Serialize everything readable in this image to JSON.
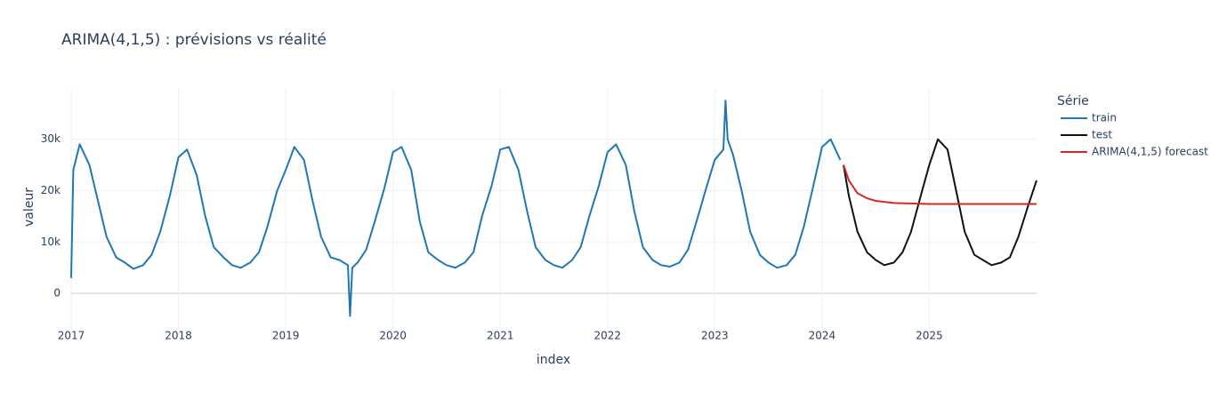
{
  "chart_data": {
    "type": "line",
    "title": "ARIMA(4,1,5) : prévisions vs réalité",
    "x_label": "index",
    "y_label": "valeur",
    "legend_title": "Série",
    "legend_position": "right",
    "grid": true,
    "xlim": [
      2017,
      2026
    ],
    "ylim": [
      -6900,
      39800
    ],
    "xticks": [
      2017,
      2018,
      2019,
      2020,
      2021,
      2022,
      2023,
      2024,
      2025
    ],
    "yticks": [
      0,
      {
        "value": 10000,
        "label": "10k"
      },
      {
        "value": 20000,
        "label": "20k"
      },
      {
        "value": 30000,
        "label": "30k"
      }
    ],
    "series": [
      {
        "name": "train",
        "color": "#1f77b4",
        "x": [
          2017,
          2017.02,
          2017.08,
          2017.17,
          2017.25,
          2017.33,
          2017.42,
          2017.5,
          2017.58,
          2017.67,
          2017.75,
          2017.83,
          2017.92,
          2018,
          2018.08,
          2018.17,
          2018.25,
          2018.33,
          2018.42,
          2018.5,
          2018.58,
          2018.67,
          2018.75,
          2018.83,
          2018.92,
          2019,
          2019.08,
          2019.17,
          2019.25,
          2019.33,
          2019.42,
          2019.5,
          2019.58,
          2019.6,
          2019.62,
          2019.67,
          2019.75,
          2019.83,
          2019.92,
          2020,
          2020.08,
          2020.17,
          2020.25,
          2020.33,
          2020.42,
          2020.5,
          2020.58,
          2020.67,
          2020.75,
          2020.83,
          2020.92,
          2021,
          2021.08,
          2021.17,
          2021.25,
          2021.33,
          2021.42,
          2021.5,
          2021.58,
          2021.67,
          2021.75,
          2021.83,
          2021.92,
          2022,
          2022.08,
          2022.17,
          2022.25,
          2022.33,
          2022.42,
          2022.5,
          2022.58,
          2022.67,
          2022.75,
          2022.83,
          2022.92,
          2023,
          2023.08,
          2023.1,
          2023.12,
          2023.17,
          2023.25,
          2023.33,
          2023.42,
          2023.5,
          2023.58,
          2023.67,
          2023.75,
          2023.83,
          2023.92,
          2024,
          2024.08,
          2024.17
        ],
        "values": [
          3000,
          24000,
          29000,
          25000,
          18000,
          11000,
          7000,
          6000,
          4800,
          5500,
          7500,
          12000,
          19000,
          26500,
          28000,
          23000,
          15000,
          9000,
          7000,
          5500,
          5000,
          6000,
          8000,
          13000,
          20000,
          24000,
          28500,
          26000,
          18000,
          11000,
          7000,
          6500,
          5500,
          -4400,
          5000,
          6000,
          8500,
          14000,
          20500,
          27500,
          28500,
          24000,
          14000,
          8000,
          6500,
          5500,
          5000,
          6000,
          8000,
          15000,
          21000,
          28000,
          28500,
          24000,
          16000,
          9000,
          6500,
          5500,
          5000,
          6500,
          9000,
          15000,
          21000,
          27500,
          29000,
          25000,
          16000,
          9000,
          6500,
          5500,
          5200,
          6000,
          8500,
          14000,
          20500,
          26000,
          28000,
          37500,
          30000,
          27000,
          20000,
          12000,
          7500,
          6000,
          5000,
          5500,
          7500,
          13000,
          21000,
          28500,
          30000,
          26000
        ]
      },
      {
        "name": "test",
        "color": "#111111",
        "x": [
          2024.2,
          2024.25,
          2024.33,
          2024.42,
          2024.5,
          2024.58,
          2024.67,
          2024.75,
          2024.83,
          2024.92,
          2025,
          2025.08,
          2025.17,
          2025.25,
          2025.33,
          2025.42,
          2025.5,
          2025.58,
          2025.67,
          2025.75,
          2025.83,
          2025.92,
          2026
        ],
        "values": [
          25000,
          19000,
          12000,
          8000,
          6500,
          5500,
          6000,
          8000,
          12000,
          19000,
          25000,
          30000,
          28000,
          20000,
          12000,
          7500,
          6500,
          5500,
          6000,
          7000,
          11000,
          17000,
          22000
        ]
      },
      {
        "name": "ARIMA(4,1,5) forecast",
        "color": "#d62728",
        "x": [
          2024.2,
          2024.25,
          2024.33,
          2024.42,
          2024.5,
          2024.67,
          2024.83,
          2025,
          2025.5,
          2026
        ],
        "values": [
          25000,
          22000,
          19500,
          18500,
          18000,
          17600,
          17500,
          17400,
          17400,
          17400
        ]
      }
    ]
  }
}
